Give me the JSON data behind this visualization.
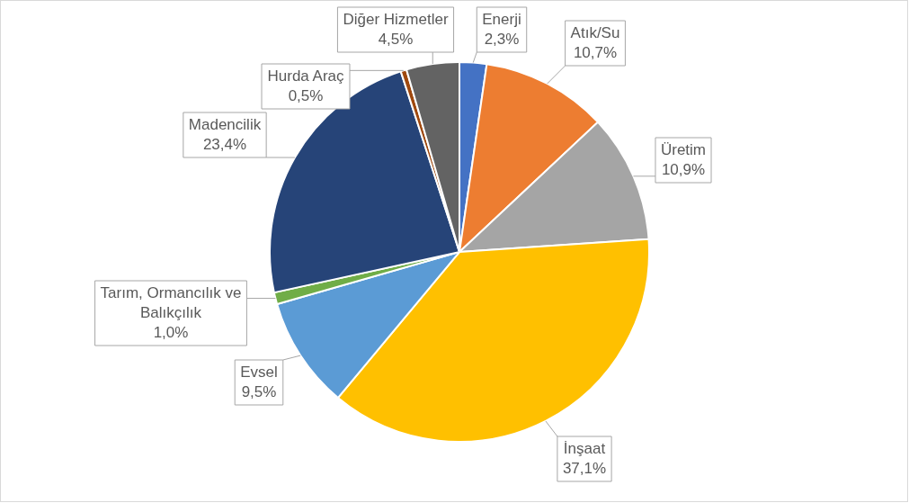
{
  "chart_data": {
    "type": "pie",
    "categories": [
      "Enerji",
      "Atık/Su",
      "Üretim",
      "İnşaat",
      "Evsel",
      "Tarım, Ormancılık ve Balıkçılık",
      "Madencilik",
      "Hurda Araç",
      "Diğer Hizmetler"
    ],
    "values": [
      2.3,
      10.7,
      10.9,
      37.1,
      9.5,
      1.0,
      23.4,
      0.5,
      4.5
    ],
    "value_labels": [
      "2,3%",
      "10,7%",
      "10,9%",
      "37,1%",
      "9,5%",
      "1,0%",
      "23,4%",
      "0,5%",
      "4,5%"
    ],
    "colors": [
      "#4472c4",
      "#ed7d31",
      "#a5a5a5",
      "#ffc000",
      "#5b9bd5",
      "#70ad47",
      "#264478",
      "#9e480e",
      "#636363"
    ],
    "legend": false
  }
}
